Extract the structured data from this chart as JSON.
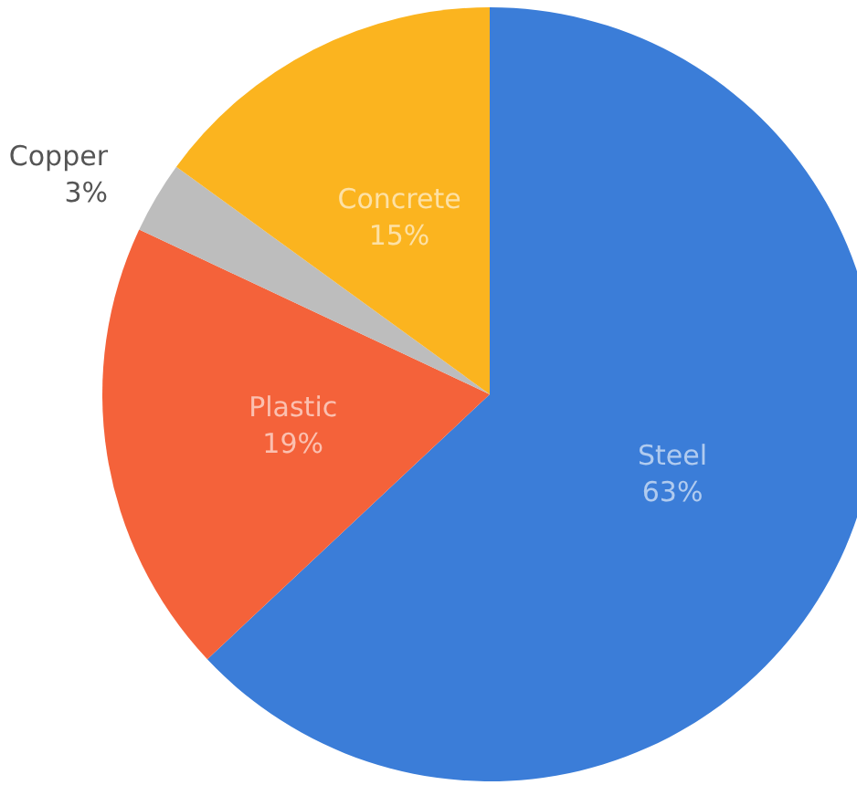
{
  "chart_data": {
    "type": "pie",
    "categories": [
      "Steel",
      "Plastic",
      "Copper",
      "Concrete"
    ],
    "values": [
      63,
      19,
      3,
      15
    ],
    "colors": [
      "#3b7dd8",
      "#f4623a",
      "#bdbdbd",
      "#fbb41f"
    ],
    "value_labels": [
      "63%",
      "19%",
      "3%",
      "15%"
    ],
    "legend": false
  }
}
